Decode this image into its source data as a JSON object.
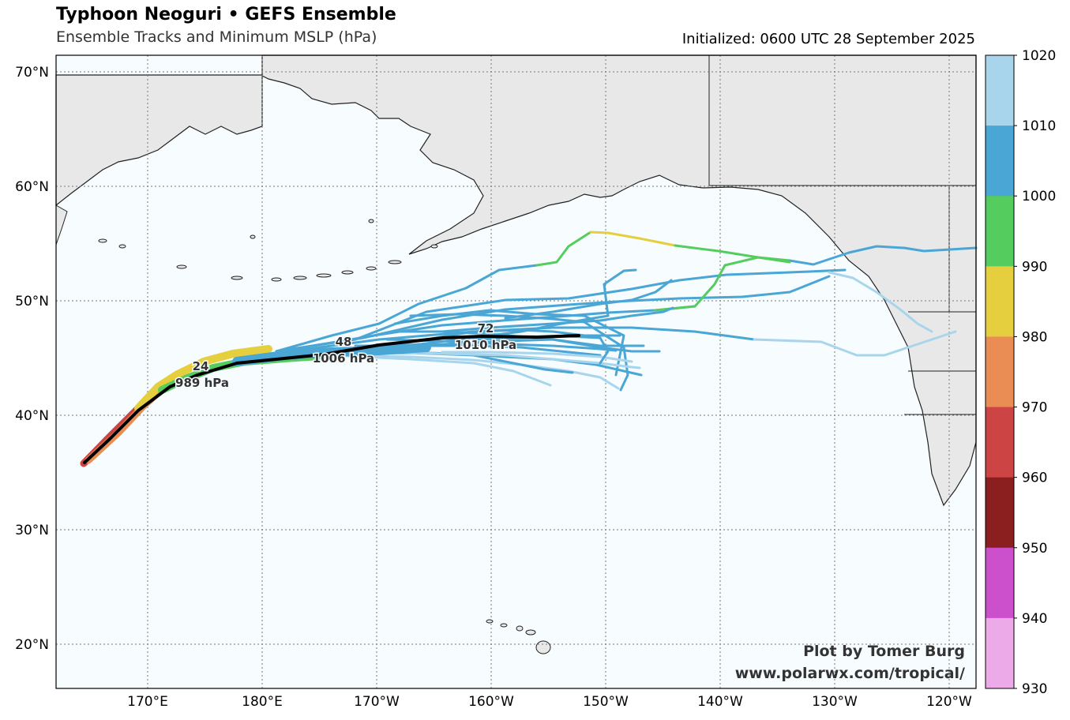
{
  "header": {
    "title": "Typhoon Neoguri • GEFS Ensemble",
    "subtitle": "Ensemble Tracks and Minimum MSLP (hPa)",
    "initialized": "Initialized: 0600 UTC 28 September 2025"
  },
  "credit": {
    "line1": "Plot by Tomer Burg",
    "line2": "www.polarwx.com/tropical/"
  },
  "axes": {
    "lat_labels": [
      "70°N",
      "60°N",
      "50°N",
      "40°N",
      "30°N",
      "20°N"
    ],
    "lon_labels": [
      "170°E",
      "180°E",
      "170°W",
      "160°W",
      "150°W",
      "140°W",
      "130°W",
      "120°W"
    ]
  },
  "colorbar": {
    "ticks": [
      "1020",
      "1010",
      "1000",
      "990",
      "980",
      "970",
      "960",
      "950",
      "940",
      "930"
    ],
    "colors": [
      "#a8d5ec",
      "#4aa6d4",
      "#55cc5e",
      "#e6cf3e",
      "#e98d55",
      "#cc4444",
      "#8b1f1f",
      "#cc4fcc",
      "#ecaae8"
    ]
  },
  "colors": {
    "ocean": "#f7fcff",
    "land": "#e8e8e8",
    "mean_track": "#000000"
  },
  "forecast_points": [
    {
      "hour": "24",
      "pressure": "989 hPa"
    },
    {
      "hour": "48",
      "pressure": "1006 hPa"
    },
    {
      "hour": "72",
      "pressure": "1010 hPa"
    }
  ]
}
